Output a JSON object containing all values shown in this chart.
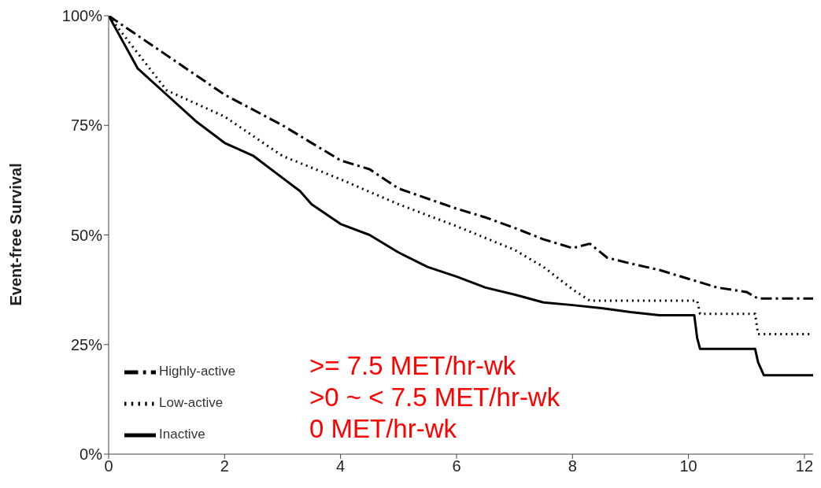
{
  "chart_data": {
    "type": "line",
    "ylabel": "Event-free Survival",
    "xlim": [
      0,
      12.15
    ],
    "xticks": [
      0,
      2,
      4,
      6,
      8,
      10,
      12
    ],
    "ylim": [
      0,
      100
    ],
    "yticks": [
      {
        "value": 0,
        "label": "0%"
      },
      {
        "value": 25,
        "label": "25%"
      },
      {
        "value": 50,
        "label": "50%"
      },
      {
        "value": 75,
        "label": "75%"
      },
      {
        "value": 100,
        "label": "100%"
      }
    ],
    "grid": false,
    "legend": "bottom left",
    "marker": "none",
    "series": [
      {
        "name": "Highly-active",
        "color": "#000000",
        "line_style": "dashed",
        "x": [
          0,
          1,
          2,
          3,
          4,
          4.5,
          5,
          6,
          6.5,
          7,
          7.5,
          8,
          8.3,
          8.6,
          9,
          9.5,
          10,
          10.5,
          11,
          11.2,
          12.15
        ],
        "values": [
          100,
          91,
          82,
          75,
          67,
          65,
          60.6,
          56,
          54,
          51.6,
          49,
          47,
          48,
          44.8,
          43.5,
          42,
          40,
          38,
          37,
          35.5,
          35.5
        ]
      },
      {
        "name": "Low-active",
        "color": "#000000",
        "line_style": "dotted",
        "x": [
          0,
          1,
          2,
          3,
          4,
          5,
          6,
          7,
          7.5,
          8,
          8.3,
          9,
          10.15,
          10.2,
          11.15,
          11.2,
          12.15
        ],
        "values": [
          100,
          83,
          77,
          68,
          62.7,
          57,
          52,
          46.6,
          42.7,
          37.6,
          35,
          35,
          35,
          32,
          32,
          27.4,
          27.4
        ]
      },
      {
        "name": "Inactive",
        "color": "#000000",
        "line_style": "solid",
        "x": [
          0,
          0.5,
          1,
          1.5,
          2,
          2.5,
          3,
          3.3,
          3.5,
          4,
          4.5,
          5,
          5.5,
          6,
          6.5,
          7,
          7.5,
          8,
          8.5,
          9,
          9.5,
          10.1,
          10.15,
          10.2,
          11.15,
          11.2,
          11.3,
          12.15
        ],
        "values": [
          100,
          88,
          82,
          76,
          71,
          68,
          63,
          60,
          57,
          52.5,
          50,
          46,
          42.7,
          40.5,
          38,
          36.4,
          34.6,
          34,
          33.3,
          32.4,
          31.7,
          31.7,
          26.5,
          24,
          24,
          21,
          18,
          18
        ]
      }
    ],
    "annotations": [
      ">= 7.5 MET/hr-wk",
      ">0 ~ < 7.5 MET/hr-wk",
      "0 MET/hr-wk"
    ]
  }
}
